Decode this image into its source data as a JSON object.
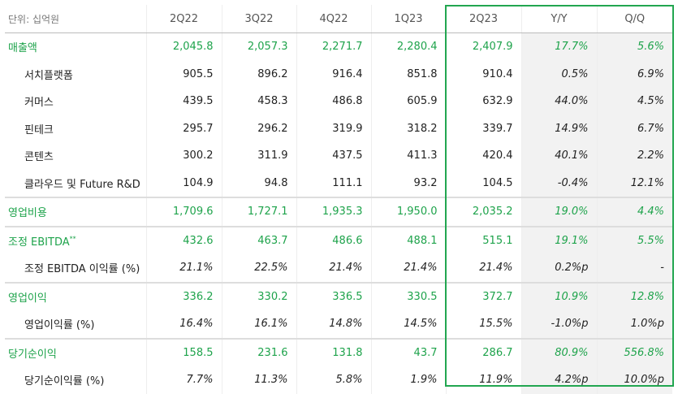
{
  "header": {
    "unit": "단위: 십억원",
    "columns": [
      "2Q22",
      "3Q22",
      "4Q22",
      "1Q23",
      "2Q23",
      "Y/Y",
      "Q/Q"
    ]
  },
  "sections": [
    {
      "rows": [
        {
          "label": "매출액",
          "cells": [
            "2,045.8",
            "2,057.3",
            "2,271.7",
            "2,280.4",
            "2,407.9",
            "17.7%",
            "5.6%"
          ]
        },
        {
          "label": "서치플랫폼",
          "cells": [
            "905.5",
            "896.2",
            "916.4",
            "851.8",
            "910.4",
            "0.5%",
            "6.9%"
          ]
        },
        {
          "label": "커머스",
          "cells": [
            "439.5",
            "458.3",
            "486.8",
            "605.9",
            "632.9",
            "44.0%",
            "4.5%"
          ]
        },
        {
          "label": "핀테크",
          "cells": [
            "295.7",
            "296.2",
            "319.9",
            "318.2",
            "339.7",
            "14.9%",
            "6.7%"
          ]
        },
        {
          "label": "콘텐츠",
          "cells": [
            "300.2",
            "311.9",
            "437.5",
            "411.3",
            "420.4",
            "40.1%",
            "2.2%"
          ]
        },
        {
          "label": "클라우드 및 Future R&D",
          "cells": [
            "104.9",
            "94.8",
            "111.1",
            "93.2",
            "104.5",
            "-0.4%",
            "12.1%"
          ]
        }
      ]
    },
    {
      "rows": [
        {
          "label": "영업비용",
          "cells": [
            "1,709.6",
            "1,727.1",
            "1,935.3",
            "1,950.0",
            "2,035.2",
            "19.0%",
            "4.4%"
          ]
        }
      ]
    },
    {
      "rows": [
        {
          "label": "조정 EBITDA",
          "note": "**",
          "cells": [
            "432.6",
            "463.7",
            "486.6",
            "488.1",
            "515.1",
            "19.1%",
            "5.5%"
          ]
        },
        {
          "label": "조정 EBITDA 이익률 (%)",
          "cells": [
            "21.1%",
            "22.5%",
            "21.4%",
            "21.4%",
            "21.4%",
            "0.2%p",
            "-"
          ]
        }
      ]
    },
    {
      "rows": [
        {
          "label": "영업이익",
          "cells": [
            "336.2",
            "330.2",
            "336.5",
            "330.5",
            "372.7",
            "10.9%",
            "12.8%"
          ]
        },
        {
          "label": "영업이익률 (%)",
          "cells": [
            "16.4%",
            "16.1%",
            "14.8%",
            "14.5%",
            "15.5%",
            "-1.0%p",
            "1.0%p"
          ]
        }
      ]
    },
    {
      "rows": [
        {
          "label": "당기순이익",
          "cells": [
            "158.5",
            "231.6",
            "131.8",
            "43.7",
            "286.7",
            "80.9%",
            "556.8%"
          ]
        },
        {
          "label": "당기순이익률 (%)",
          "cells": [
            "7.7%",
            "11.3%",
            "5.8%",
            "1.9%",
            "11.9%",
            "4.2%p",
            "10.0%p"
          ]
        }
      ]
    }
  ]
}
